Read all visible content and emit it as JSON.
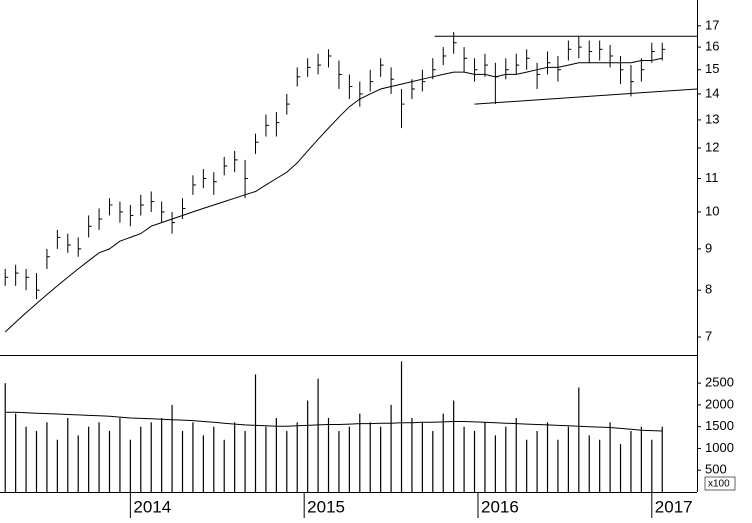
{
  "chart_data": [
    {
      "type": "ohlc",
      "x": [
        2013.28,
        2013.34,
        2013.4,
        2013.46,
        2013.52,
        2013.58,
        2013.64,
        2013.7,
        2013.76,
        2013.82,
        2013.88,
        2013.94,
        2014.0,
        2014.06,
        2014.12,
        2014.18,
        2014.24,
        2014.3,
        2014.36,
        2014.42,
        2014.48,
        2014.54,
        2014.6,
        2014.66,
        2014.72,
        2014.78,
        2014.84,
        2014.9,
        2014.96,
        2015.02,
        2015.08,
        2015.14,
        2015.2,
        2015.26,
        2015.32,
        2015.38,
        2015.44,
        2015.5,
        2015.56,
        2015.62,
        2015.68,
        2015.74,
        2015.8,
        2015.86,
        2015.92,
        2015.98,
        2016.04,
        2016.1,
        2016.16,
        2016.22,
        2016.28,
        2016.34,
        2016.4,
        2016.46,
        2016.52,
        2016.58,
        2016.64,
        2016.7,
        2016.76,
        2016.82,
        2016.88,
        2016.94,
        2017.0,
        2017.06
      ],
      "high": [
        8.5,
        8.6,
        8.5,
        8.4,
        9.0,
        9.5,
        9.4,
        9.3,
        9.9,
        10.1,
        10.4,
        10.3,
        10.2,
        10.5,
        10.6,
        10.3,
        10.0,
        10.4,
        11.1,
        11.3,
        11.2,
        11.7,
        11.9,
        11.6,
        12.5,
        13.2,
        13.3,
        14.0,
        15.1,
        15.5,
        15.7,
        15.9,
        15.4,
        14.8,
        14.5,
        15.0,
        15.5,
        15.1,
        14.2,
        14.6,
        15.0,
        15.5,
        16.0,
        16.7,
        16.0,
        15.5,
        15.7,
        15.3,
        15.5,
        15.7,
        15.9,
        15.3,
        15.8,
        15.6,
        16.3,
        16.5,
        16.3,
        16.3,
        16.1,
        15.6,
        15.2,
        15.5,
        16.2,
        16.2
      ],
      "low": [
        8.1,
        8.1,
        8.0,
        7.8,
        8.5,
        9.0,
        8.9,
        8.8,
        9.3,
        9.5,
        9.9,
        9.7,
        9.6,
        9.9,
        10.0,
        9.7,
        9.4,
        9.8,
        10.5,
        10.7,
        10.5,
        11.1,
        11.2,
        10.4,
        11.8,
        12.4,
        12.4,
        13.2,
        14.3,
        14.7,
        14.8,
        15.1,
        14.2,
        13.8,
        13.5,
        14.1,
        14.7,
        14.0,
        12.7,
        13.8,
        14.1,
        14.6,
        15.2,
        15.7,
        14.9,
        14.5,
        14.7,
        13.6,
        14.6,
        14.8,
        15.0,
        14.2,
        14.8,
        14.5,
        15.4,
        15.5,
        15.3,
        15.4,
        15.1,
        14.4,
        13.9,
        14.5,
        15.3,
        15.4
      ],
      "close": [
        8.3,
        8.4,
        8.3,
        8.0,
        8.8,
        9.3,
        9.1,
        9.0,
        9.6,
        9.8,
        10.2,
        10.0,
        9.9,
        10.2,
        10.3,
        10.0,
        9.7,
        10.1,
        10.8,
        11.0,
        10.9,
        11.4,
        11.6,
        11.0,
        12.2,
        12.8,
        12.9,
        13.6,
        14.7,
        15.1,
        15.2,
        15.6,
        14.8,
        14.3,
        14.0,
        14.5,
        15.2,
        14.6,
        13.6,
        14.2,
        14.5,
        15.0,
        15.6,
        16.2,
        15.5,
        15.0,
        15.2,
        14.7,
        15.0,
        15.2,
        15.5,
        14.8,
        15.3,
        15.0,
        15.9,
        16.0,
        15.8,
        15.9,
        15.6,
        15.0,
        14.5,
        15.0,
        15.8,
        15.9
      ],
      "moving_average": [
        7.1,
        7.3,
        7.5,
        7.7,
        7.9,
        8.1,
        8.3,
        8.5,
        8.7,
        8.9,
        9.0,
        9.2,
        9.3,
        9.4,
        9.6,
        9.7,
        9.8,
        9.9,
        10.0,
        10.1,
        10.2,
        10.3,
        10.4,
        10.5,
        10.6,
        10.8,
        11.0,
        11.2,
        11.5,
        11.9,
        12.3,
        12.7,
        13.1,
        13.5,
        13.8,
        14.0,
        14.2,
        14.3,
        14.4,
        14.5,
        14.6,
        14.7,
        14.8,
        14.9,
        14.9,
        14.8,
        14.8,
        14.7,
        14.8,
        14.8,
        14.9,
        15.0,
        15.1,
        15.1,
        15.2,
        15.3,
        15.3,
        15.3,
        15.3,
        15.3,
        15.3,
        15.4,
        15.4,
        15.5
      ],
      "color": "#000000",
      "trendlines": [
        {
          "x": [
            2015.75,
            2017.26
          ],
          "y": [
            16.5,
            16.5
          ]
        },
        {
          "x": [
            2015.98,
            2017.26
          ],
          "y": [
            13.6,
            14.2
          ]
        }
      ],
      "xlim": [
        2013.25,
        2017.26
      ],
      "ylim": [
        6.65,
        18.3
      ],
      "yticks": [
        7,
        8,
        9,
        10,
        11,
        12,
        13,
        14,
        15,
        16,
        17
      ],
      "log_scale": true
    },
    {
      "type": "bar",
      "x": [
        2013.28,
        2013.34,
        2013.4,
        2013.46,
        2013.52,
        2013.58,
        2013.64,
        2013.7,
        2013.76,
        2013.82,
        2013.88,
        2013.94,
        2014.0,
        2014.06,
        2014.12,
        2014.18,
        2014.24,
        2014.3,
        2014.36,
        2014.42,
        2014.48,
        2014.54,
        2014.6,
        2014.66,
        2014.72,
        2014.78,
        2014.84,
        2014.9,
        2014.96,
        2015.02,
        2015.08,
        2015.14,
        2015.2,
        2015.26,
        2015.32,
        2015.38,
        2015.44,
        2015.5,
        2015.56,
        2015.62,
        2015.68,
        2015.74,
        2015.8,
        2015.86,
        2015.92,
        2015.98,
        2016.04,
        2016.1,
        2016.16,
        2016.22,
        2016.28,
        2016.34,
        2016.4,
        2016.46,
        2016.52,
        2016.58,
        2016.64,
        2016.7,
        2016.76,
        2016.82,
        2016.88,
        2016.94,
        2017.0,
        2017.06
      ],
      "values": [
        2500,
        1800,
        1500,
        1400,
        1600,
        1200,
        1700,
        1300,
        1500,
        1600,
        1400,
        1700,
        1200,
        1500,
        1600,
        1700,
        2000,
        1400,
        1600,
        1300,
        1500,
        1200,
        1600,
        1400,
        2700,
        1500,
        1700,
        1400,
        1600,
        2100,
        2600,
        1700,
        1400,
        1500,
        1800,
        1600,
        1500,
        2000,
        3000,
        1700,
        1600,
        1400,
        1800,
        2100,
        1500,
        1400,
        1600,
        1300,
        1500,
        1700,
        1200,
        1400,
        1600,
        1200,
        1500,
        2400,
        1300,
        1200,
        1600,
        1100,
        1400,
        1500,
        1200,
        1500
      ],
      "moving_average": [
        1830,
        1830,
        1820,
        1810,
        1800,
        1790,
        1780,
        1770,
        1760,
        1750,
        1740,
        1720,
        1700,
        1690,
        1680,
        1670,
        1660,
        1650,
        1640,
        1620,
        1600,
        1580,
        1560,
        1540,
        1530,
        1520,
        1510,
        1510,
        1520,
        1530,
        1540,
        1550,
        1550,
        1560,
        1570,
        1570,
        1580,
        1580,
        1590,
        1590,
        1600,
        1600,
        1610,
        1620,
        1620,
        1610,
        1600,
        1590,
        1580,
        1570,
        1560,
        1550,
        1540,
        1530,
        1520,
        1510,
        1500,
        1490,
        1480,
        1460,
        1440,
        1420,
        1410,
        1400
      ],
      "color": "#000000",
      "unit_label": "x100",
      "xlim": [
        2013.25,
        2017.26
      ],
      "xticks": [
        2014,
        2015,
        2016,
        2017
      ],
      "ylim": [
        0,
        3100
      ],
      "yticks": [
        500,
        1000,
        1500,
        2000,
        2500
      ]
    }
  ]
}
